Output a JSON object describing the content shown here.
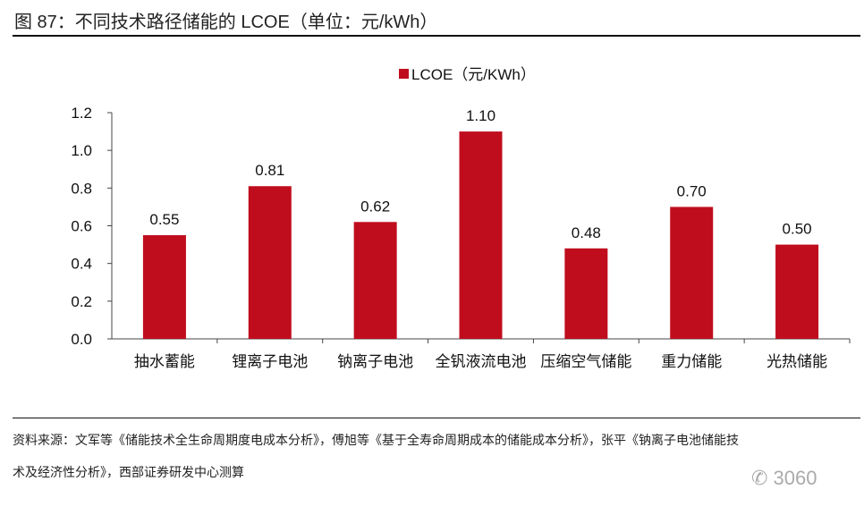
{
  "title": "图 87：不同技术路径储能的 LCOE（单位：元/kWh）",
  "source_line1": "资料来源：文军等《储能技术全生命周期度电成本分析》，傅旭等《基于全寿命周期成本的储能成本分析》，张平《钠离子电池储能技",
  "source_line2": "术及经济性分析》，西部证券研发中心测算",
  "watermark": "3060",
  "chart_data": {
    "type": "bar",
    "categories": [
      "抽水蓄能",
      "锂离子电池",
      "钠离子电池",
      "全钒液流电池",
      "压缩空气储能",
      "重力储能",
      "光热储能"
    ],
    "values": [
      0.55,
      0.81,
      0.62,
      1.1,
      0.48,
      0.7,
      0.5
    ],
    "data_labels": [
      "0.55",
      "0.81",
      "0.62",
      "1.10",
      "0.48",
      "0.70",
      "0.50"
    ],
    "legend": "LCOE（元/KWh）",
    "legend_position": "top-center",
    "ylim": [
      0,
      1.2
    ],
    "yticks": [
      "0.0",
      "0.2",
      "0.4",
      "0.6",
      "0.8",
      "1.0",
      "1.2"
    ],
    "color": "#C00D1E",
    "grid": false
  }
}
